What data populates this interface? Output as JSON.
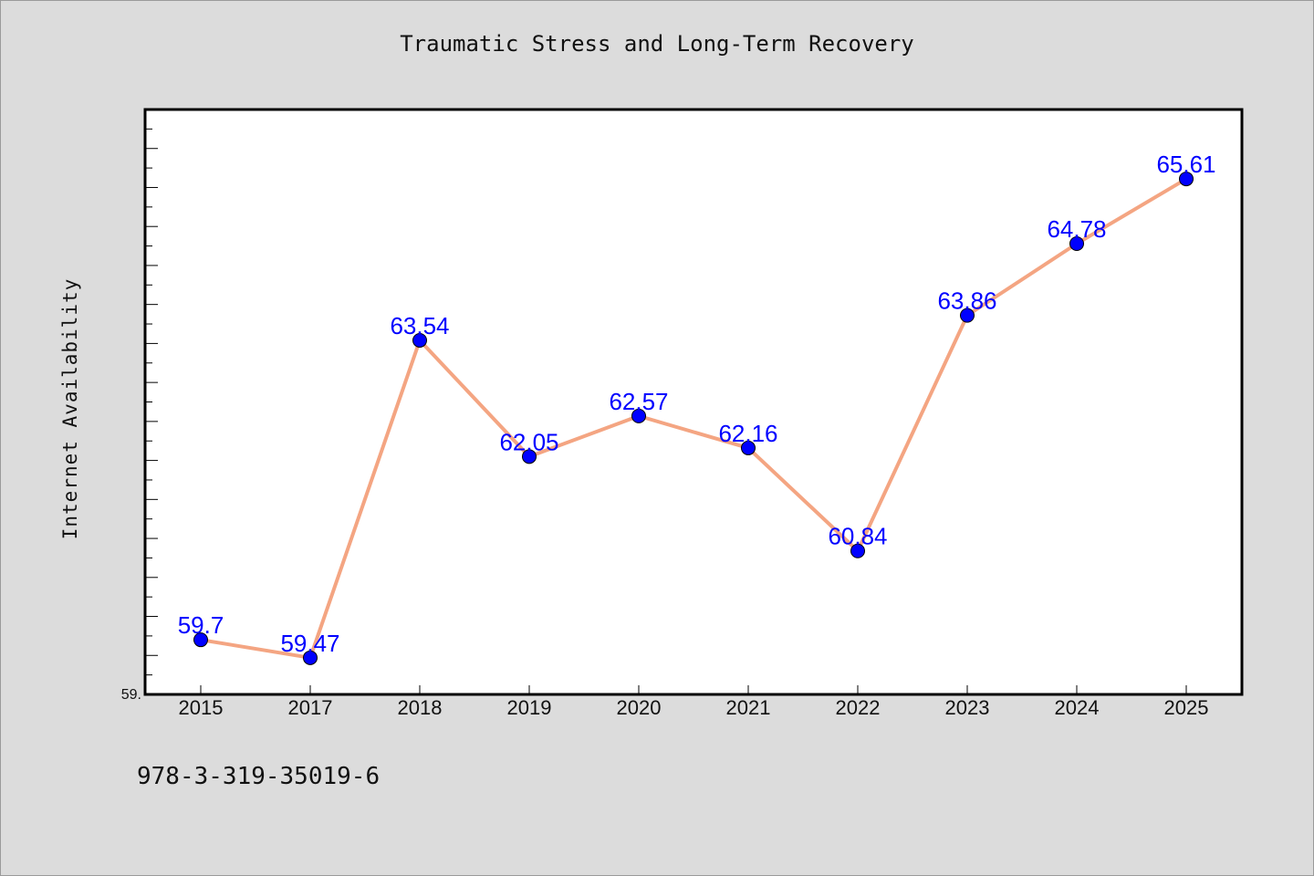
{
  "page": {
    "title": "Traumatic Stress and Long-Term Recovery",
    "footer": "978-3-319-35019-6"
  },
  "chart_data": {
    "type": "line",
    "title": "Traumatic Stress and Long-Term Recovery",
    "xlabel": "",
    "ylabel": "Internet Availability",
    "categories": [
      "2015",
      "2017",
      "2018",
      "2019",
      "2020",
      "2021",
      "2022",
      "2023",
      "2024",
      "2025"
    ],
    "series": [
      {
        "values": [
          59.7,
          59.47,
          63.54,
          62.05,
          62.57,
          62.16,
          60.84,
          63.86,
          64.78,
          65.61
        ],
        "data_labels": [
          "59.7",
          "59.47",
          "63.54",
          "62.05",
          "62.57",
          "62.16",
          "60.84",
          "63.86",
          "64.78",
          "65.61"
        ],
        "line_color": "#f4a582",
        "marker_color": "#0000ff"
      }
    ],
    "ylim": [
      59.0,
      66.5
    ],
    "y_tick_labels": [
      "59."
    ],
    "grid": false,
    "legend": "none"
  }
}
